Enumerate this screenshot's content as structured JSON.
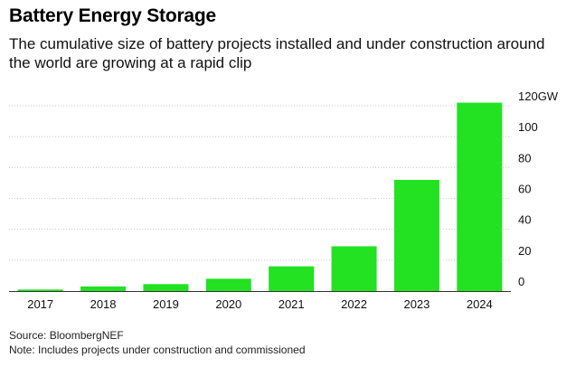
{
  "title": "Battery Energy Storage",
  "subtitle": "The cumulative size of battery projects installed and under construction around the world are growing at a rapid clip",
  "source": "Source: BloombergNEF",
  "note": "Note: Includes projects under construction and commissioned",
  "colors": {
    "bar": "#22e222",
    "grid": "#c8c8c8",
    "axis": "#333333"
  },
  "chart_data": {
    "type": "bar",
    "title": "Battery Energy Storage",
    "categories": [
      "2017",
      "2018",
      "2019",
      "2020",
      "2021",
      "2022",
      "2023",
      "2024"
    ],
    "values": [
      1,
      3,
      4.5,
      8,
      16,
      29,
      72,
      122
    ],
    "ylim": [
      0,
      120
    ],
    "yticks": [
      0,
      20,
      40,
      60,
      80,
      100,
      120
    ],
    "ytick_labels": [
      "0",
      "20",
      "40",
      "60",
      "80",
      "100",
      "120GW"
    ],
    "xlabel": "",
    "ylabel": "",
    "grid": true,
    "yaxis_position": "right"
  }
}
